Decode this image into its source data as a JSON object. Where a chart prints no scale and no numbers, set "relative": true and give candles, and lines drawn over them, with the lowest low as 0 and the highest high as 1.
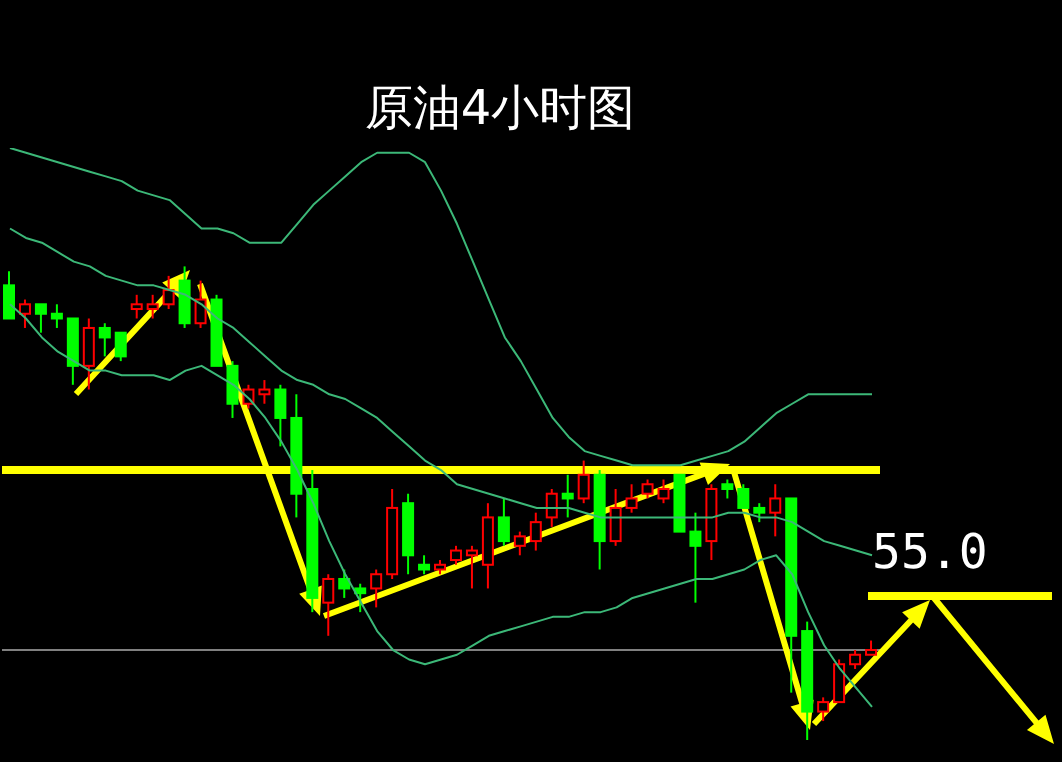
{
  "chart_data": {
    "type": "candlestick",
    "title": "原油4小时图",
    "relative": true,
    "tick_labels": false,
    "categories": [
      null,
      null,
      null,
      null,
      null,
      null,
      null,
      null,
      null,
      null,
      null,
      null,
      null,
      null,
      null,
      null,
      null,
      null,
      null,
      null,
      null,
      null,
      null,
      null,
      null,
      null,
      null,
      null,
      null,
      null,
      null,
      null,
      null,
      null,
      null,
      null,
      null,
      null,
      null,
      null,
      null,
      null,
      null,
      null,
      null,
      null,
      null,
      null,
      null,
      null,
      null,
      null,
      null,
      null,
      null
    ],
    "ohlc": [
      [
        0.96,
        0.99,
        0.89,
        0.89
      ],
      [
        0.9,
        0.93,
        0.87,
        0.92
      ],
      [
        0.92,
        0.92,
        0.86,
        0.9
      ],
      [
        0.9,
        0.92,
        0.87,
        0.89
      ],
      [
        0.89,
        0.89,
        0.75,
        0.79
      ],
      [
        0.79,
        0.89,
        0.74,
        0.87
      ],
      [
        0.87,
        0.88,
        0.81,
        0.85
      ],
      [
        0.86,
        0.86,
        0.8,
        0.81
      ],
      [
        0.91,
        0.94,
        0.89,
        0.92
      ],
      [
        0.91,
        0.94,
        0.89,
        0.92
      ],
      [
        0.92,
        0.98,
        0.91,
        0.95
      ],
      [
        0.97,
        1.0,
        0.87,
        0.88
      ],
      [
        0.88,
        0.97,
        0.87,
        0.93
      ],
      [
        0.93,
        0.94,
        0.79,
        0.79
      ],
      [
        0.79,
        0.8,
        0.68,
        0.71
      ],
      [
        0.71,
        0.75,
        0.7,
        0.74
      ],
      [
        0.73,
        0.76,
        0.71,
        0.74
      ],
      [
        0.74,
        0.75,
        0.62,
        0.68
      ],
      [
        0.68,
        0.73,
        0.47,
        0.52
      ],
      [
        0.53,
        0.57,
        0.27,
        0.3
      ],
      [
        0.29,
        0.35,
        0.22,
        0.34
      ],
      [
        0.34,
        0.36,
        0.3,
        0.32
      ],
      [
        0.32,
        0.33,
        0.27,
        0.31
      ],
      [
        0.32,
        0.36,
        0.28,
        0.35
      ],
      [
        0.35,
        0.53,
        0.34,
        0.49
      ],
      [
        0.5,
        0.52,
        0.35,
        0.39
      ],
      [
        0.37,
        0.39,
        0.35,
        0.36
      ],
      [
        0.36,
        0.38,
        0.35,
        0.37
      ],
      [
        0.38,
        0.41,
        0.37,
        0.4
      ],
      [
        0.39,
        0.41,
        0.32,
        0.4
      ],
      [
        0.37,
        0.5,
        0.32,
        0.47
      ],
      [
        0.47,
        0.51,
        0.41,
        0.42
      ],
      [
        0.41,
        0.44,
        0.39,
        0.43
      ],
      [
        0.42,
        0.48,
        0.4,
        0.46
      ],
      [
        0.47,
        0.53,
        0.45,
        0.52
      ],
      [
        0.52,
        0.56,
        0.47,
        0.51
      ],
      [
        0.51,
        0.59,
        0.5,
        0.56
      ],
      [
        0.56,
        0.57,
        0.36,
        0.42
      ],
      [
        0.42,
        0.53,
        0.41,
        0.49
      ],
      [
        0.49,
        0.54,
        0.48,
        0.51
      ],
      [
        0.52,
        0.55,
        0.51,
        0.54
      ],
      [
        0.51,
        0.55,
        0.5,
        0.53
      ],
      [
        0.56,
        0.56,
        0.44,
        0.44
      ],
      [
        0.44,
        0.48,
        0.29,
        0.41
      ],
      [
        0.42,
        0.54,
        0.38,
        0.53
      ],
      [
        0.54,
        0.55,
        0.51,
        0.53
      ],
      [
        0.53,
        0.54,
        0.49,
        0.49
      ],
      [
        0.49,
        0.5,
        0.46,
        0.48
      ],
      [
        0.48,
        0.54,
        0.43,
        0.51
      ],
      [
        0.51,
        0.51,
        0.1,
        0.22
      ],
      [
        0.23,
        0.25,
        0.0,
        0.06
      ],
      [
        0.06,
        0.09,
        0.04,
        0.08
      ],
      [
        0.08,
        0.17,
        0.08,
        0.16
      ],
      [
        0.16,
        0.19,
        0.15,
        0.18
      ],
      [
        0.18,
        0.21,
        0.18,
        0.19
      ]
    ],
    "colors": [
      "#00ff00",
      "#ff0000",
      "#00ff00",
      "#00ff00",
      "#00ff00",
      "#ff0000",
      "#00ff00",
      "#00ff00",
      "#ff0000",
      "#ff0000",
      "#ff0000",
      "#00ff00",
      "#ff0000",
      "#00ff00",
      "#00ff00",
      "#ff0000",
      "#ff0000",
      "#00ff00",
      "#00ff00",
      "#00ff00",
      "#ff0000",
      "#00ff00",
      "#00ff00",
      "#ff0000",
      "#ff0000",
      "#00ff00",
      "#00ff00",
      "#ff0000",
      "#ff0000",
      "#ff0000",
      "#ff0000",
      "#00ff00",
      "#ff0000",
      "#ff0000",
      "#ff0000",
      "#00ff00",
      "#ff0000",
      "#00ff00",
      "#ff0000",
      "#ff0000",
      "#ff0000",
      "#ff0000",
      "#00ff00",
      "#00ff00",
      "#ff0000",
      "#00ff00",
      "#00ff00",
      "#00ff00",
      "#ff0000",
      "#00ff00",
      "#00ff00",
      "#ff0000",
      "#ff0000",
      "#ff0000",
      "#ff0000"
    ],
    "series": [
      {
        "type": "line",
        "color": "#3cb878",
        "values": [
          1.25,
          1.24,
          1.23,
          1.22,
          1.21,
          1.2,
          1.19,
          1.18,
          1.16,
          1.15,
          1.14,
          1.11,
          1.08,
          1.08,
          1.07,
          1.05,
          1.05,
          1.05,
          1.09,
          1.13,
          1.16,
          1.19,
          1.22,
          1.24,
          1.24,
          1.24,
          1.22,
          1.16,
          1.09,
          1.01,
          0.93,
          0.85,
          0.8,
          0.74,
          0.68,
          0.64,
          0.61,
          0.6,
          0.59,
          0.58,
          0.58,
          0.58,
          0.58,
          0.59,
          0.6,
          0.61,
          0.63,
          0.66,
          0.69,
          0.71,
          0.73,
          0.73,
          0.73,
          0.73,
          0.73
        ]
      },
      {
        "type": "line",
        "color": "#3cb878",
        "values": [
          1.08,
          1.06,
          1.05,
          1.03,
          1.01,
          1.0,
          0.98,
          0.97,
          0.96,
          0.96,
          0.95,
          0.94,
          0.92,
          0.89,
          0.87,
          0.84,
          0.81,
          0.78,
          0.76,
          0.75,
          0.73,
          0.72,
          0.7,
          0.68,
          0.65,
          0.62,
          0.59,
          0.57,
          0.54,
          0.53,
          0.52,
          0.51,
          0.5,
          0.49,
          0.49,
          0.49,
          0.48,
          0.47,
          0.47,
          0.47,
          0.47,
          0.47,
          0.47,
          0.47,
          0.47,
          0.48,
          0.48,
          0.47,
          0.47,
          0.46,
          0.44,
          0.42,
          0.41,
          0.4,
          0.39
        ]
      },
      {
        "type": "line",
        "color": "#3cb878",
        "values": [
          0.92,
          0.89,
          0.85,
          0.82,
          0.8,
          0.78,
          0.78,
          0.77,
          0.77,
          0.77,
          0.76,
          0.78,
          0.79,
          0.77,
          0.75,
          0.72,
          0.68,
          0.63,
          0.57,
          0.5,
          0.42,
          0.35,
          0.29,
          0.23,
          0.19,
          0.17,
          0.16,
          0.17,
          0.18,
          0.2,
          0.22,
          0.23,
          0.24,
          0.25,
          0.26,
          0.26,
          0.27,
          0.27,
          0.28,
          0.3,
          0.31,
          0.32,
          0.33,
          0.34,
          0.34,
          0.35,
          0.36,
          0.38,
          0.39,
          0.35,
          0.27,
          0.2,
          0.15,
          0.11,
          0.07
        ]
      }
    ],
    "annotations": [
      "55.0"
    ],
    "ref_lines": [
      {
        "axis": "y",
        "value": 0.57,
        "color": "#ffff00"
      },
      {
        "axis": "y",
        "value": 0.19,
        "color": "#808080"
      }
    ]
  }
}
